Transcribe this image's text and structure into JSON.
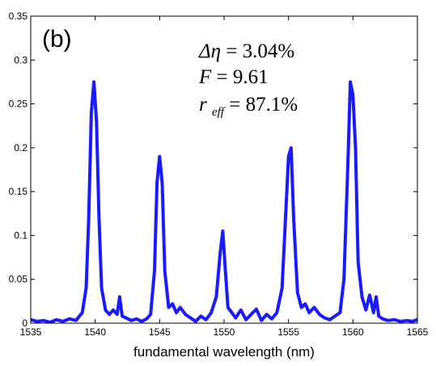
{
  "chart_data": {
    "type": "line",
    "panel_label": "(b)",
    "xlabel": "fundamental wavelength (nm)",
    "ylabel": "",
    "xlim": [
      1535,
      1565
    ],
    "ylim": [
      0,
      0.35
    ],
    "xticks": [
      1535,
      1540,
      1545,
      1550,
      1555,
      1560,
      1565
    ],
    "yticks": [
      0,
      0.05,
      0.1,
      0.15,
      0.2,
      0.25,
      0.3,
      0.35
    ],
    "ytick_labels": [
      "0",
      "0.05",
      "0.1",
      "0.15",
      "0.2",
      "0.25",
      "0.3",
      "0.35"
    ],
    "grid": false,
    "line_color": "#1a1aff",
    "annotations": {
      "delta_eta": {
        "symbol": "Δη",
        "value": "= 3.04%"
      },
      "F": {
        "symbol": "F",
        "value": "= 9.61"
      },
      "r_eff": {
        "symbol": "r",
        "subscript": "eff",
        "value": "= 87.1%"
      }
    },
    "series": [
      {
        "x": [
          1535,
          1535.5,
          1536,
          1536.5,
          1537,
          1537.5,
          1538,
          1538.5,
          1539,
          1539.3,
          1539.5,
          1539.7,
          1539.9,
          1540.1,
          1540.3,
          1540.5,
          1540.8,
          1541.1,
          1541.4,
          1541.7,
          1541.9,
          1542.1,
          1542.4,
          1542.8,
          1543.2,
          1543.6,
          1544,
          1544.3,
          1544.6,
          1544.8,
          1545,
          1545.2,
          1545.4,
          1545.7,
          1546,
          1546.3,
          1546.6,
          1547,
          1547.4,
          1547.8,
          1548.2,
          1548.6,
          1549,
          1549.4,
          1549.7,
          1549.9,
          1550.1,
          1550.3,
          1550.6,
          1550.9,
          1551.3,
          1551.7,
          1552.1,
          1552.5,
          1552.9,
          1553.3,
          1553.7,
          1554.1,
          1554.5,
          1554.8,
          1555,
          1555.2,
          1555.4,
          1555.7,
          1556,
          1556.3,
          1556.6,
          1557,
          1557.4,
          1557.8,
          1558.2,
          1558.6,
          1559,
          1559.3,
          1559.6,
          1559.8,
          1560,
          1560.2,
          1560.4,
          1560.7,
          1561,
          1561.3,
          1561.6,
          1561.8,
          1562,
          1562.3,
          1562.7,
          1563.2,
          1563.7,
          1564.2,
          1564.6,
          1565
        ],
        "y": [
          0.004,
          0.002,
          0.003,
          0.001,
          0.004,
          0.002,
          0.005,
          0.003,
          0.012,
          0.04,
          0.12,
          0.24,
          0.275,
          0.23,
          0.12,
          0.04,
          0.015,
          0.01,
          0.015,
          0.01,
          0.03,
          0.008,
          0.006,
          0.003,
          0.005,
          0.002,
          0.005,
          0.01,
          0.06,
          0.16,
          0.19,
          0.16,
          0.06,
          0.018,
          0.022,
          0.012,
          0.018,
          0.01,
          0.006,
          0.002,
          0.008,
          0.004,
          0.012,
          0.03,
          0.08,
          0.105,
          0.06,
          0.018,
          0.012,
          0.006,
          0.015,
          0.004,
          0.01,
          0.016,
          0.003,
          0.01,
          0.005,
          0.012,
          0.04,
          0.13,
          0.19,
          0.2,
          0.12,
          0.035,
          0.018,
          0.022,
          0.012,
          0.018,
          0.01,
          0.006,
          0.004,
          0.008,
          0.012,
          0.05,
          0.18,
          0.275,
          0.26,
          0.2,
          0.07,
          0.03,
          0.015,
          0.032,
          0.012,
          0.03,
          0.008,
          0.005,
          0.003,
          0.004,
          0.002,
          0.003,
          0.002,
          0.004
        ]
      }
    ]
  }
}
